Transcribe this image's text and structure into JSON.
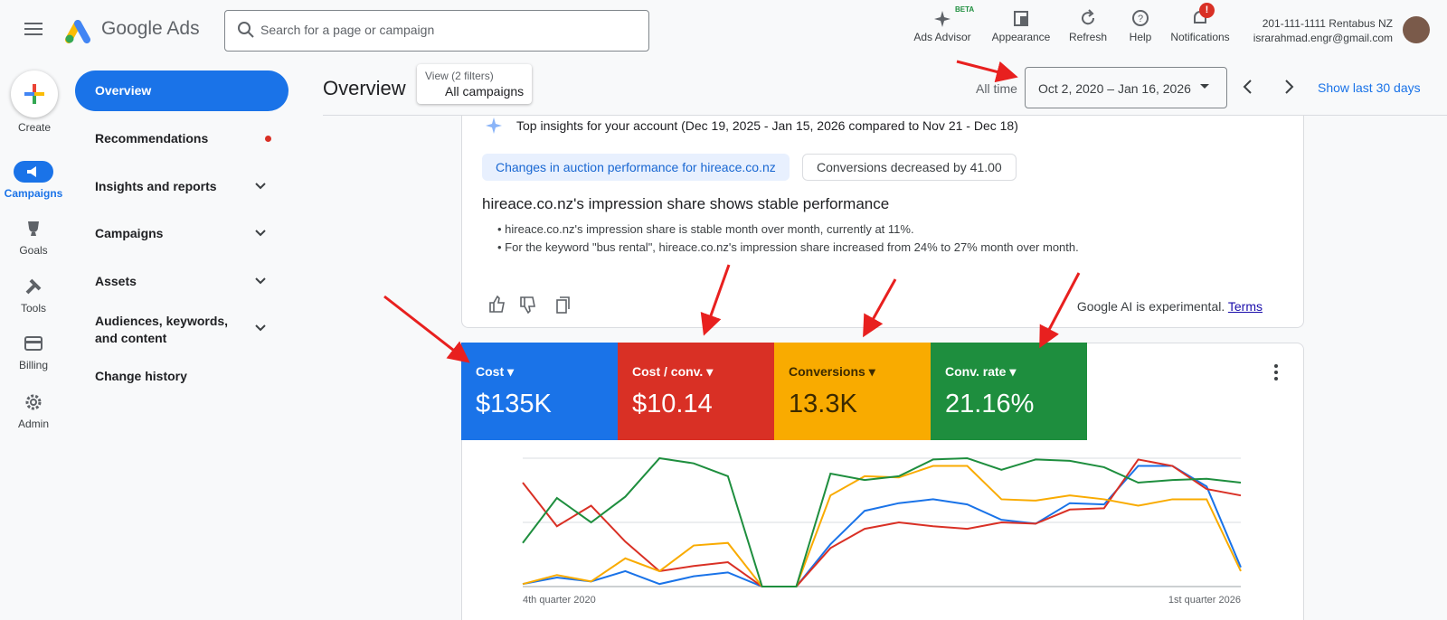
{
  "header": {
    "product": "Google Ads",
    "search_placeholder": "Search for a page or campaign",
    "actions": [
      {
        "label": "Ads Advisor",
        "badge": "BETA"
      },
      {
        "label": "Appearance"
      },
      {
        "label": "Refresh"
      },
      {
        "label": "Help"
      },
      {
        "label": "Notifications",
        "badge": "!"
      }
    ],
    "account_name": "201-111-1111 Rentabus NZ",
    "account_email": "israrahmad.engr@gmail.com"
  },
  "rail": [
    "Create",
    "Campaigns",
    "Goals",
    "Tools",
    "Billing",
    "Admin"
  ],
  "nav": [
    "Overview",
    "Recommendations",
    "Insights and reports",
    "Campaigns",
    "Assets",
    "Audiences, keywords, and content",
    "Change history"
  ],
  "page": {
    "title": "Overview",
    "filter_caption": "View (2 filters)",
    "filter_value": "All campaigns",
    "range_label": "All time",
    "date_range": "Oct 2, 2020 – Jan 16, 2026",
    "show_last": "Show last 30 days"
  },
  "insights": {
    "heading": "Top insights for your account (Dec 19, 2025 - Jan 15, 2026 compared to Nov 21 - Dec 18)",
    "chips": [
      "Changes in auction performance for hireace.co.nz",
      "Conversions decreased by 41.00"
    ],
    "title": "hireace.co.nz's impression share shows stable performance",
    "bullets": [
      "hireace.co.nz's impression share is stable month over month, currently at 11%.",
      "For the keyword \"bus rental\", hireace.co.nz's impression share increased from 24% to 27% month over month."
    ],
    "disclaimer": "Google AI is experimental.",
    "terms": "Terms"
  },
  "chart_data": {
    "type": "line",
    "categories": [
      "4th quarter 2020",
      null,
      null,
      null,
      null,
      null,
      null,
      null,
      null,
      null,
      null,
      null,
      null,
      null,
      null,
      null,
      null,
      null,
      null,
      null,
      null,
      "1st quarter 2026"
    ],
    "ylim": [
      0,
      100
    ],
    "yticks": [
      0,
      50,
      100
    ],
    "grid": true,
    "series": [
      {
        "name": "Cost",
        "summary": "$135K",
        "color": "#1a73e8",
        "values": [
          2,
          7,
          4,
          12,
          2,
          8,
          11,
          0,
          0,
          33,
          59,
          65,
          68,
          64,
          52,
          49,
          65,
          64,
          94,
          94,
          78,
          15
        ]
      },
      {
        "name": "Cost / conv.",
        "summary": "$10.14",
        "color": "#d93025",
        "values": [
          81,
          47,
          63,
          35,
          12,
          16,
          19,
          0,
          0,
          30,
          45,
          50,
          47,
          45,
          50,
          49,
          60,
          61,
          99,
          94,
          76,
          71
        ]
      },
      {
        "name": "Conversions",
        "summary": "13.3K",
        "color": "#f9ab00",
        "values": [
          2,
          9,
          4,
          22,
          12,
          32,
          34,
          0,
          0,
          71,
          86,
          85,
          94,
          94,
          68,
          67,
          71,
          68,
          63,
          68,
          68,
          12
        ]
      },
      {
        "name": "Conv. rate",
        "summary": "21.16%",
        "color": "#1e8e3e",
        "values": [
          34,
          69,
          50,
          70,
          100,
          96,
          86,
          0,
          0,
          88,
          83,
          86,
          99,
          100,
          91,
          99,
          98,
          93,
          81,
          83,
          84,
          81
        ]
      }
    ]
  }
}
